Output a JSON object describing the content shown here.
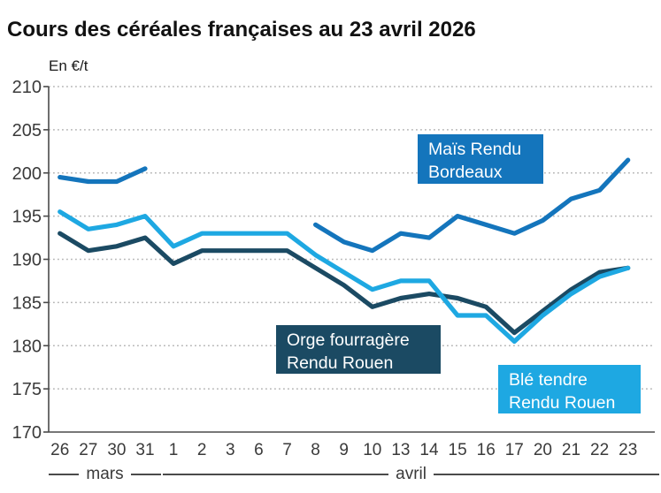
{
  "title": "Cours des céréales françaises au 23 avril 2026",
  "y_unit": "En €/t",
  "chart_data": {
    "type": "line",
    "x": [
      "26",
      "27",
      "30",
      "31",
      "1",
      "2",
      "3",
      "6",
      "7",
      "8",
      "9",
      "10",
      "13",
      "14",
      "15",
      "16",
      "17",
      "20",
      "21",
      "22",
      "23"
    ],
    "month_groups": [
      {
        "label": "mars",
        "start_index": 0,
        "end_index": 3
      },
      {
        "label": "avril",
        "start_index": 4,
        "end_index": 20
      }
    ],
    "ylabel_unit": "En €/t",
    "ylim": [
      170,
      210
    ],
    "y_ticks": [
      170,
      175,
      180,
      185,
      190,
      195,
      200,
      205,
      210
    ],
    "grid": "horizontal dotted",
    "legend_position": "inline boxed labels",
    "series": [
      {
        "name": "Maïs Rendu Bordeaux",
        "color": "#1475bc",
        "values": [
          199.5,
          199,
          199,
          200.5,
          null,
          null,
          null,
          null,
          null,
          194,
          192,
          191,
          193,
          192.5,
          195,
          194,
          193,
          194.5,
          197,
          198,
          201.5
        ]
      },
      {
        "name": "Blé tendre Rendu Rouen",
        "color": "#1ea8e2",
        "values": [
          195.5,
          193.5,
          194,
          195,
          191.5,
          193,
          193,
          193,
          193,
          190.5,
          188.5,
          186.5,
          187.5,
          187.5,
          183.5,
          183.5,
          180.5,
          183.5,
          186,
          188,
          189
        ]
      },
      {
        "name": "Orge fourragère Rendu Rouen",
        "color": "#1b4a63",
        "values": [
          193,
          191,
          191.5,
          192.5,
          189.5,
          191,
          191,
          191,
          191,
          189,
          187,
          184.5,
          185.5,
          186,
          185.5,
          184.5,
          181.5,
          184,
          186.5,
          188.5,
          189
        ]
      }
    ],
    "annotations": [
      {
        "id": "mais",
        "lines": [
          "Maïs Rendu",
          "Bordeaux"
        ],
        "color": "#1475bc"
      },
      {
        "id": "orge",
        "lines": [
          "Orge fourragère",
          "Rendu Rouen"
        ],
        "color": "#1b4a63"
      },
      {
        "id": "ble",
        "lines": [
          "Blé tendre",
          "Rendu Rouen"
        ],
        "color": "#1ea8e2"
      }
    ]
  }
}
